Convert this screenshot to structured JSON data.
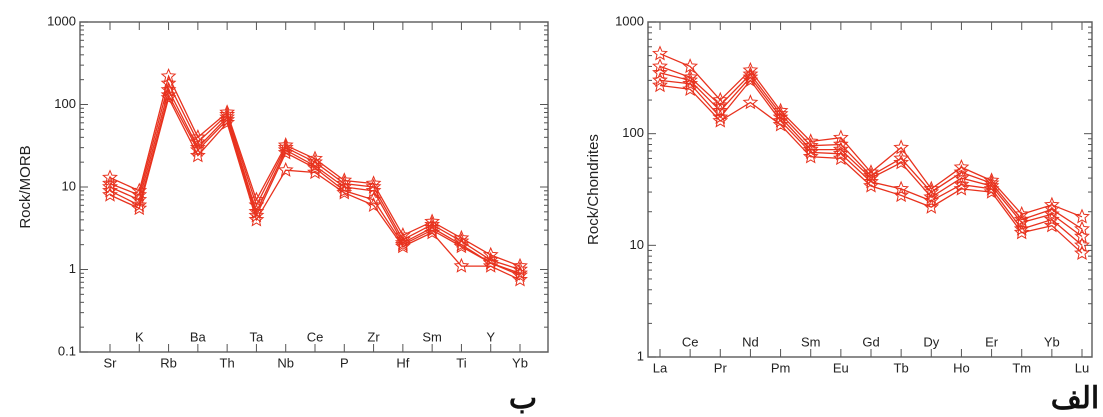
{
  "chart_data": [
    {
      "type": "line",
      "y_label": "Rock/MORB",
      "panel_label": "ب",
      "log_y": true,
      "categories": [
        "Sr",
        "K",
        "Rb",
        "Ba",
        "Th",
        "Ta",
        "Nb",
        "Ce",
        "P",
        "Zr",
        "Hf",
        "Sm",
        "Ti",
        "Y",
        "Yb"
      ],
      "ylim": [
        0.1,
        1000
      ],
      "yticks": [
        0.1,
        1,
        10,
        100,
        1000
      ],
      "series": [
        {
          "color": "#e8321e",
          "values": [
            13,
            9,
            220,
            40,
            80,
            7,
            32,
            22,
            12,
            11,
            2.6,
            3.8,
            2.4,
            1.5,
            1.1
          ]
        },
        {
          "color": "#e8321e",
          "values": [
            11,
            8,
            180,
            35,
            75,
            6,
            30,
            20,
            11,
            10,
            2.3,
            3.5,
            2.2,
            1.3,
            1
          ]
        },
        {
          "color": "#e8321e",
          "values": [
            10,
            7,
            150,
            30,
            70,
            5,
            28,
            18,
            10,
            9,
            2.1,
            3.2,
            2,
            1.2,
            0.9
          ]
        },
        {
          "color": "#e8321e",
          "values": [
            9,
            6,
            130,
            28,
            65,
            4.5,
            26,
            17,
            9,
            7,
            2,
            3,
            1.9,
            1.2,
            0.85
          ]
        },
        {
          "color": "#e8321e",
          "values": [
            8,
            5.5,
            120,
            24,
            60,
            4,
            16,
            15,
            8.5,
            6,
            1.9,
            2.8,
            1.1,
            1.1,
            0.75
          ]
        }
      ]
    },
    {
      "type": "line",
      "y_label": "Rock/Chondrites",
      "panel_label": "الف",
      "log_y": true,
      "categories": [
        "La",
        "Ce",
        "Pr",
        "Nd",
        "Pm",
        "Sm",
        "Eu",
        "Gd",
        "Tb",
        "Dy",
        "Ho",
        "Er",
        "Tm",
        "Yb",
        "Lu"
      ],
      "ylim": [
        1,
        1000
      ],
      "yticks": [
        1,
        10,
        100,
        1000
      ],
      "series": [
        {
          "color": "#e8321e",
          "values": [
            520,
            400,
            200,
            370,
            160,
            85,
            92,
            45,
            75,
            32,
            50,
            38,
            19,
            23,
            18
          ]
        },
        {
          "color": "#e8321e",
          "values": [
            400,
            320,
            180,
            340,
            150,
            78,
            80,
            42,
            60,
            30,
            45,
            36,
            17,
            21,
            14
          ]
        },
        {
          "color": "#e8321e",
          "values": [
            350,
            300,
            160,
            320,
            140,
            72,
            72,
            40,
            55,
            27,
            40,
            34,
            16,
            19,
            12
          ]
        },
        {
          "color": "#e8321e",
          "values": [
            300,
            280,
            140,
            300,
            130,
            68,
            66,
            37,
            32,
            25,
            35,
            32,
            14,
            17,
            10
          ]
        },
        {
          "color": "#e8321e",
          "values": [
            270,
            250,
            130,
            190,
            120,
            62,
            60,
            34,
            28,
            22,
            32,
            30,
            13,
            15,
            8.5
          ]
        }
      ]
    }
  ]
}
